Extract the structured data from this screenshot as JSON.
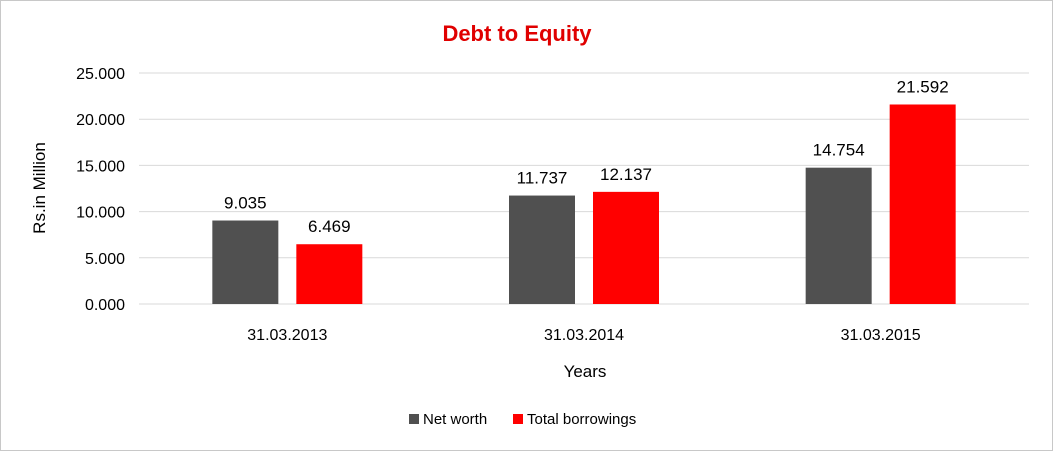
{
  "chart_data": {
    "type": "bar",
    "title": "Debt to Equity",
    "xlabel": "Years",
    "ylabel": "Rs.in Million",
    "categories": [
      "31.03.2013",
      "31.03.2014",
      "31.03.2015"
    ],
    "series": [
      {
        "name": "Net worth",
        "values": [
          9.035,
          11.737,
          14.754
        ],
        "labels": [
          "9.035",
          "11.737",
          "14.754"
        ],
        "color": "#505050"
      },
      {
        "name": "Total borrowings",
        "values": [
          6.469,
          12.137,
          21.592
        ],
        "labels": [
          "6.469",
          "12.137",
          "21.592"
        ],
        "color": "#ff0000"
      }
    ],
    "ylim": [
      0,
      25
    ],
    "yticks": [
      0,
      5,
      10,
      15,
      20,
      25
    ],
    "ytick_labels": [
      "0.000",
      "5.000",
      "10.000",
      "15.000",
      "20.000",
      "25.000"
    ],
    "grid": true,
    "legend_position": "bottom",
    "title_color": "#e00000"
  }
}
